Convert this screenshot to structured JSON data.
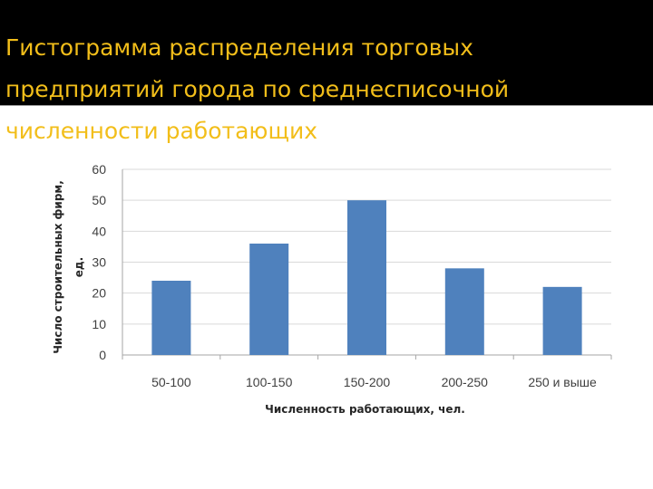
{
  "slide": {
    "title": "Гистограмма распределения торговых\nпредприятий города по среднесписочной\nчисленности работающих",
    "title_color": "#F2BE1A",
    "band_color": "#000000"
  },
  "chart_data": {
    "type": "bar",
    "title": "",
    "categories": [
      "50-100",
      "100-150",
      "150-200",
      "200-250",
      "250 и выше"
    ],
    "values": [
      24,
      36,
      50,
      28,
      22
    ],
    "xlabel": "Численность работающих, чел.",
    "ylabel": [
      "Число строительных фирм,",
      "ед."
    ],
    "ylim": [
      0,
      60
    ],
    "yticks": [
      0,
      10,
      20,
      30,
      40,
      50,
      60
    ],
    "grid": true,
    "legend": "none",
    "bar_color": "#4F81BD"
  }
}
